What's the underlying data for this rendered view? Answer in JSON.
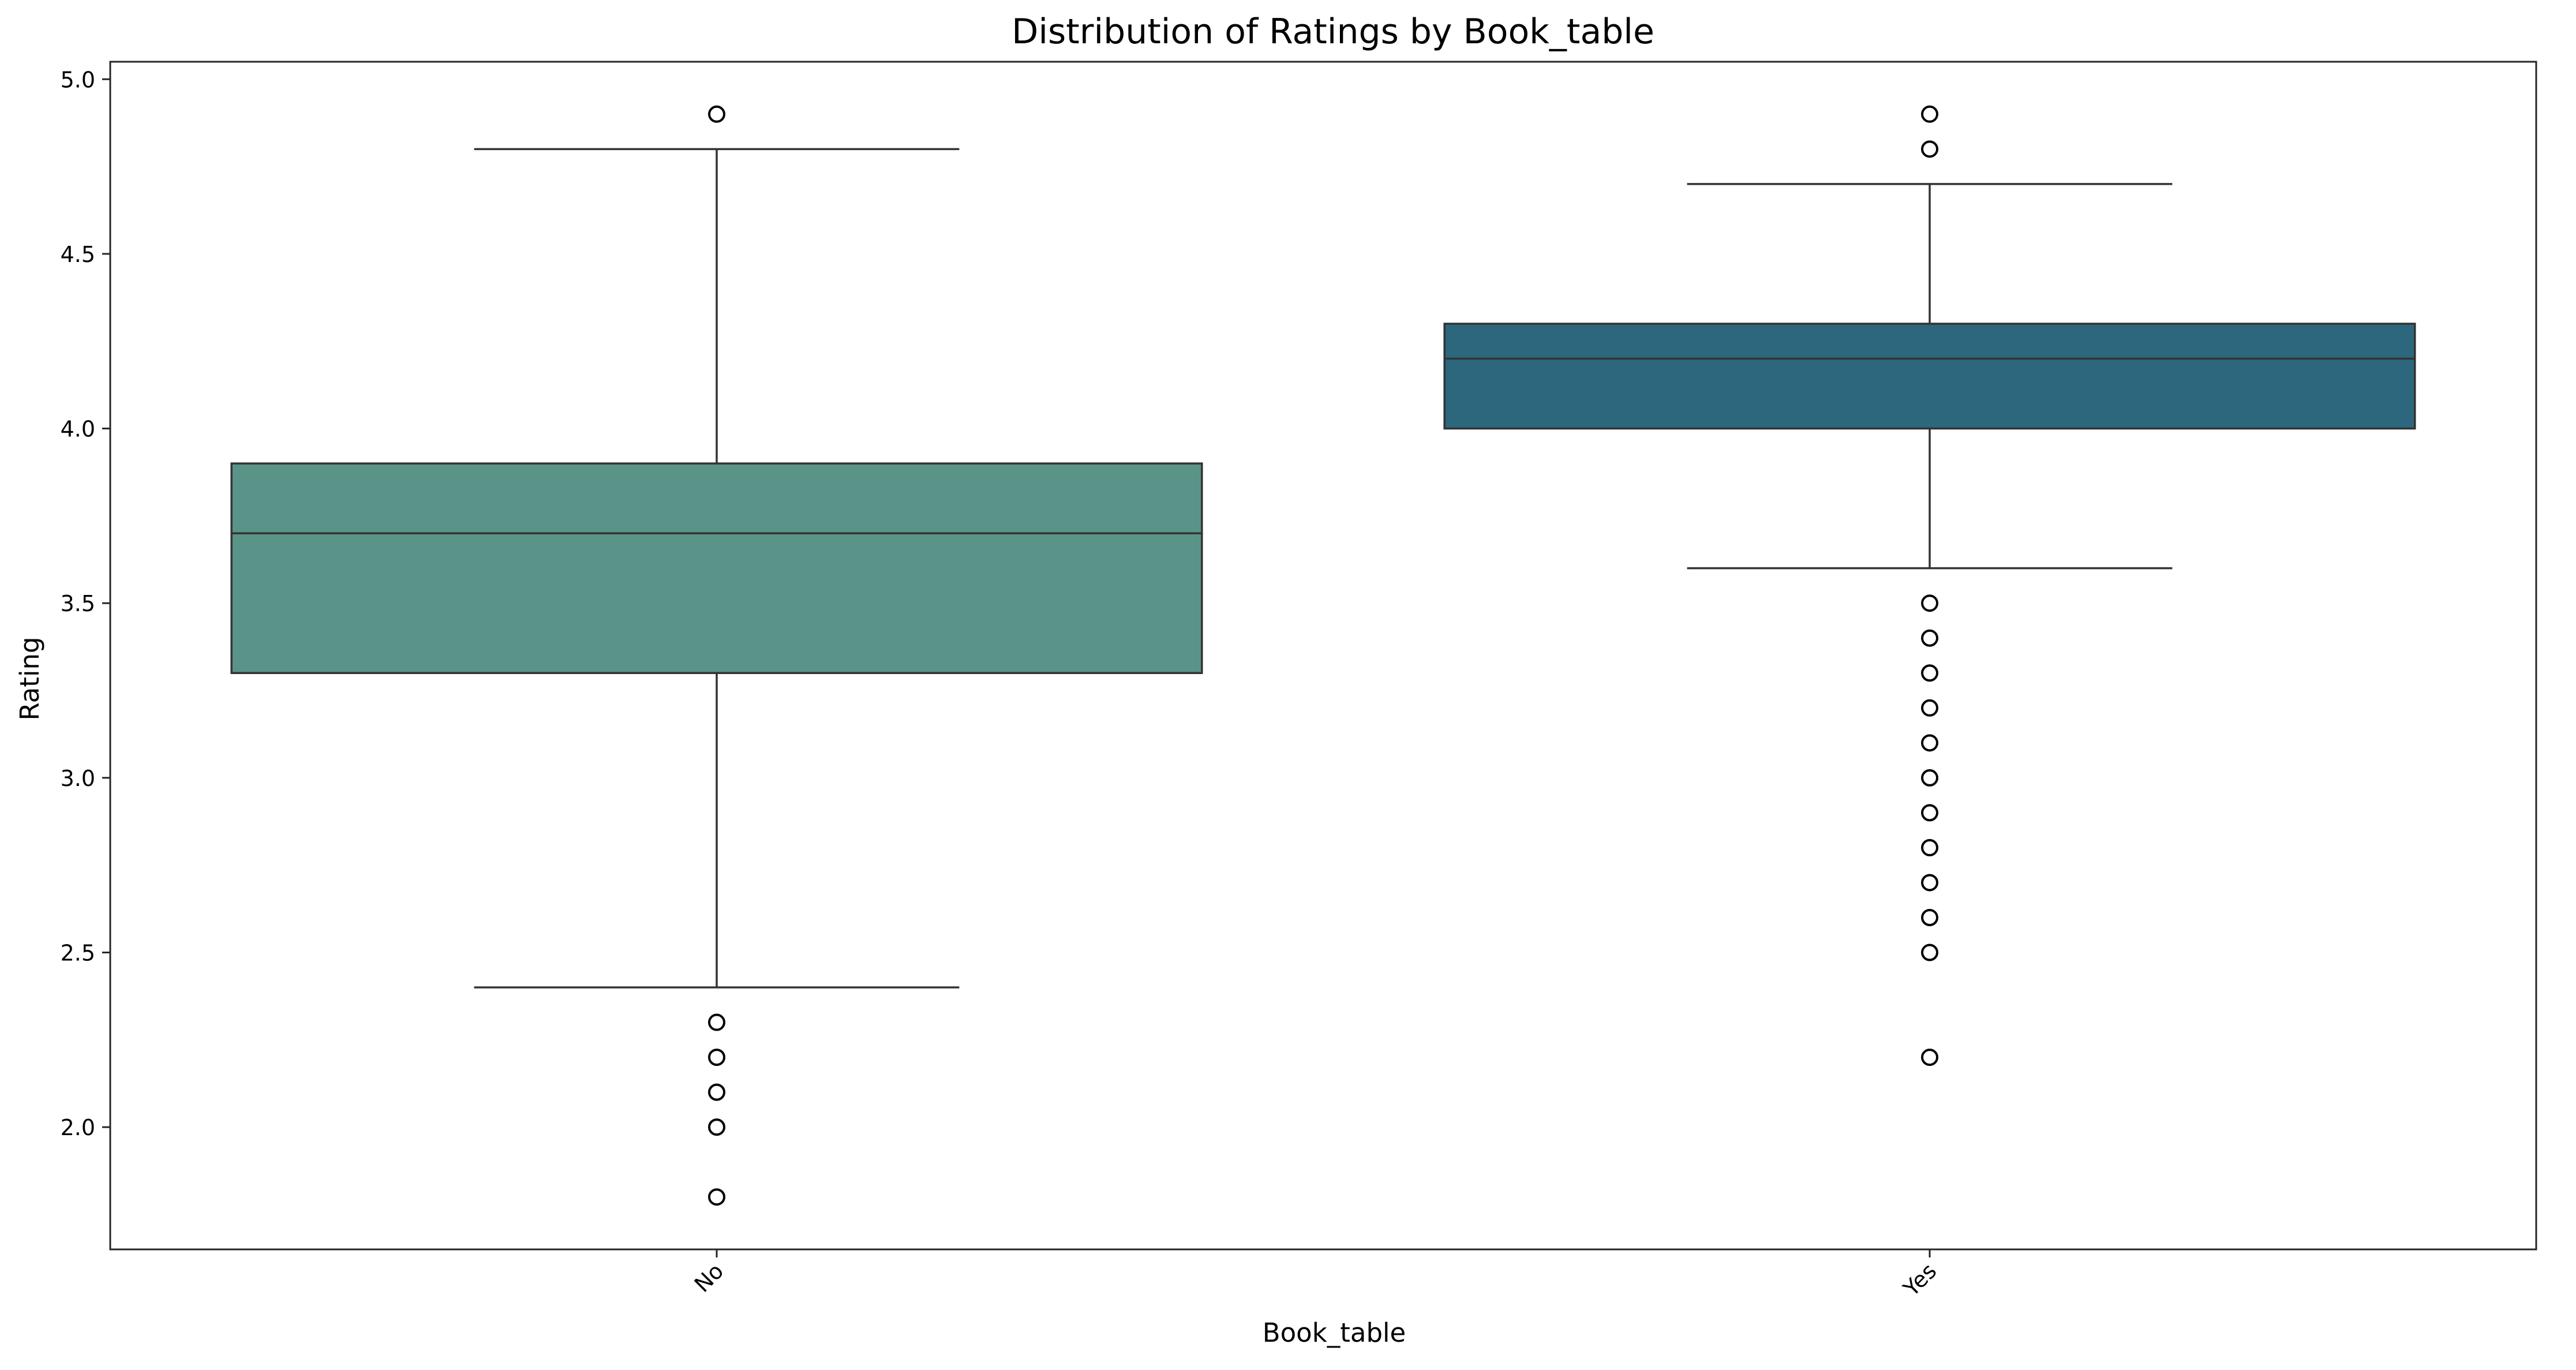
{
  "chart_data": {
    "type": "box",
    "title": "Distribution of Ratings by Book_table",
    "xlabel": "Book_table",
    "ylabel": "Rating",
    "ylim": [
      1.65,
      5.05
    ],
    "yticks": [
      2.0,
      2.5,
      3.0,
      3.5,
      4.0,
      4.5,
      5.0
    ],
    "ytick_labels": [
      "2.0",
      "2.5",
      "3.0",
      "3.5",
      "4.0",
      "4.5",
      "5.0"
    ],
    "categories": [
      "No",
      "Yes"
    ],
    "tick_label_rotation": 45,
    "grid": false,
    "legend": "none",
    "boxes": [
      {
        "category": "No",
        "color": "#5a9488",
        "whisker_low": 2.4,
        "q1": 3.3,
        "median": 3.7,
        "q3": 3.9,
        "whisker_high": 4.8,
        "outliers": [
          4.9,
          2.3,
          2.2,
          2.1,
          2.0,
          1.8
        ]
      },
      {
        "category": "Yes",
        "color": "#2c677d",
        "whisker_low": 3.6,
        "q1": 4.0,
        "median": 4.2,
        "q3": 4.3,
        "whisker_high": 4.7,
        "outliers": [
          4.9,
          4.8,
          3.5,
          3.4,
          3.3,
          3.2,
          3.1,
          3.0,
          2.9,
          2.8,
          2.7,
          2.6,
          2.5,
          2.2
        ]
      }
    ]
  }
}
